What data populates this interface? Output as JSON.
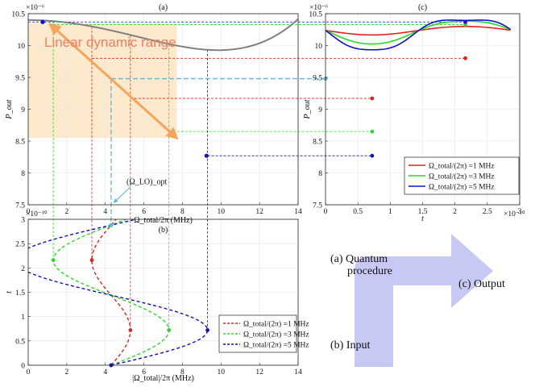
{
  "colors": {
    "red": "#e8201c",
    "green": "#22dd22",
    "blue": "#1010cc",
    "gray": "#808080",
    "orange": "#f5a45a",
    "shade": "#fde9cc",
    "cyan": "#5ab8e6",
    "flow": "#c8c8f5",
    "linear_text": "#f08060"
  },
  "chart_data": [
    {
      "id": "a",
      "type": "line",
      "panel_label": "(a)",
      "xlabel": "Ω_total/2π (MHz)",
      "ylabel": "P_out",
      "y_exponent": "×10⁻⁶",
      "xlim": [
        0,
        14
      ],
      "ylim": [
        7.5,
        10.5
      ],
      "xticks": [
        "0",
        "2",
        "4",
        "6",
        "8",
        "10",
        "12",
        "14"
      ],
      "yticks": [
        "7.5",
        "8",
        "8.5",
        "9",
        "9.5",
        "10",
        "10.5"
      ],
      "curve": "P(Ω) = 10.4 - 0.00972·Ω² + 0.00005·Ω⁴ (×10⁻⁶)",
      "linear_region": {
        "x": [
          0,
          7.7
        ],
        "y": [
          8.55,
          10.35
        ]
      },
      "linear_segment": {
        "x": [
          1.15,
          7.7
        ],
        "y": [
          10.33,
          8.55
        ]
      },
      "working_point": {
        "x": 4.3,
        "y": 9.48
      },
      "markers": [
        {
          "x": 0.75,
          "y": 10.37,
          "series": "blue"
        },
        {
          "x": 9.25,
          "y": 8.27,
          "series": "blue"
        }
      ],
      "annotation": "Linear dynamic range",
      "lo_label": "(Ω_LO)_opt"
    },
    {
      "id": "b",
      "type": "line",
      "panel_label": "(b)",
      "xlabel": "|Ω_total|/2π (MHz)",
      "ylabel": "t",
      "y_exponent": "×10⁻¹⁰",
      "xlim": [
        0,
        14
      ],
      "ylim": [
        0,
        3
      ],
      "xticks": [
        "0",
        "2",
        "4",
        "6",
        "8",
        "10",
        "12",
        "14"
      ],
      "yticks": [
        "0",
        "0.5",
        "1",
        "1.5",
        "2",
        "2.5",
        "3"
      ],
      "center": 4.3,
      "period": 2.88,
      "series": [
        {
          "name": "Ω_total/(2π) =1 MHz",
          "color": "red",
          "amplitude": 1
        },
        {
          "name": "Ω_total/(2π) =3 MHz",
          "color": "green",
          "amplitude": 3
        },
        {
          "name": "Ω_total/(2π) =5 MHz",
          "color": "blue",
          "amplitude": 5
        }
      ]
    },
    {
      "id": "c",
      "type": "line",
      "panel_label": "(c)",
      "xlabel": "t",
      "ylabel": "P_out",
      "y_exponent": "×10⁻⁶",
      "x_exponent": "×10⁻¹⁰",
      "xlim": [
        0,
        3
      ],
      "ylim": [
        7.5,
        10.5
      ],
      "xticks": [
        "0",
        "0.5",
        "1",
        "1.5",
        "2",
        "2.5",
        "3"
      ],
      "yticks": [
        "7.5",
        "8",
        "8.5",
        "9",
        "9.5",
        "10",
        "10.5"
      ],
      "period": 2.88,
      "series": [
        {
          "name": "Ω_total/(2π) =1 MHz",
          "color": "red",
          "amplitude": 1,
          "min": {
            "x": 0.72,
            "y": 9.17
          },
          "max": {
            "x": 2.16,
            "y": 9.8
          }
        },
        {
          "name": "Ω_total/(2π) =3 MHz",
          "color": "green",
          "amplitude": 3,
          "min": {
            "x": 0.72,
            "y": 8.65
          },
          "max": {
            "x": 2.16,
            "y": 10.33
          }
        },
        {
          "name": "Ω_total/(2π) =5 MHz",
          "color": "blue",
          "amplitude": 5,
          "min": {
            "x": 0.72,
            "y": 8.27
          },
          "max": {
            "x": 2.16,
            "y": 10.37
          }
        }
      ]
    }
  ],
  "flow": {
    "quantum": [
      "(a) Quantum",
      "procedure"
    ],
    "output": "(c) Output",
    "input": "(b) Input"
  }
}
